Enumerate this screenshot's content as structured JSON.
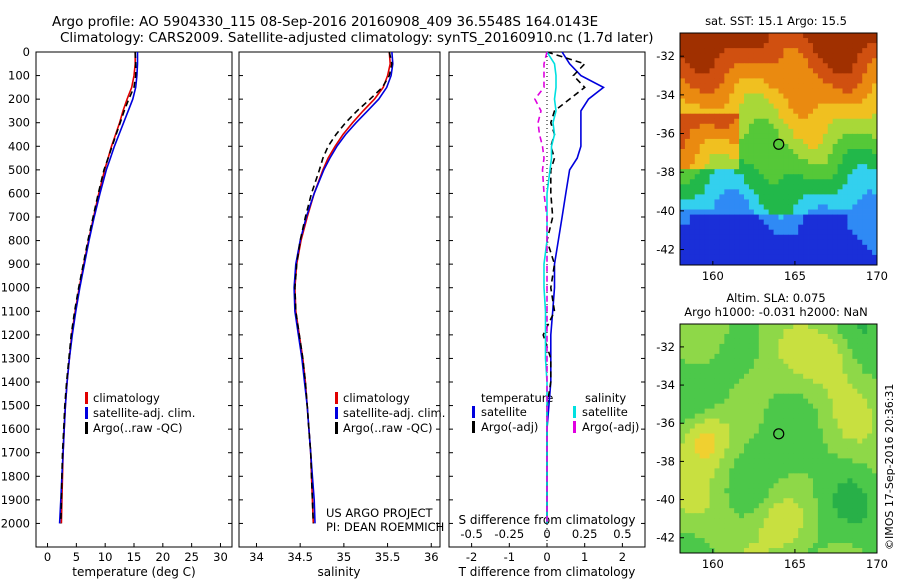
{
  "header": {
    "line1": "Argo profile: AO 5904330_115 08-Sep-2016 20160908_409 36.5548S 164.0143E",
    "line2": "Climatology: CARS2009. Satellite-adjusted climatology: synTS_20160910.nc (1.7d later)"
  },
  "colors": {
    "climatology": "#e00000",
    "satellite": "#0000dd",
    "argo": "#000000",
    "salinity_sat": "#00e0e0",
    "salinity_argo": "#e000e0"
  },
  "project": {
    "line1": "US ARGO PROJECT",
    "line2": "PI: DEAN ROEMMICH"
  },
  "credit": "©IMOS 17-Sep-2016 20:36:31",
  "chart_data": [
    {
      "type": "line",
      "id": "temperature",
      "xlabel": "temperature (deg C)",
      "ylabel": "",
      "xlim": [
        -2,
        32
      ],
      "ylim": [
        2100,
        0
      ],
      "xticks": [
        0,
        5,
        10,
        15,
        20,
        25,
        30
      ],
      "yticks": [
        0,
        100,
        200,
        300,
        400,
        500,
        600,
        700,
        800,
        900,
        1000,
        1100,
        1200,
        1300,
        1400,
        1500,
        1600,
        1700,
        1800,
        1900,
        2000
      ],
      "legend": [
        "climatology",
        "satellite-adj. clim.",
        "Argo(..raw -QC)"
      ],
      "depth": [
        0,
        50,
        100,
        150,
        200,
        250,
        300,
        350,
        400,
        450,
        500,
        600,
        700,
        800,
        900,
        1000,
        1100,
        1200,
        1300,
        1400,
        1500,
        1600,
        1700,
        1800,
        1900,
        2000
      ],
      "series": [
        {
          "name": "climatology",
          "values": [
            15.2,
            15.2,
            15.0,
            14.6,
            13.8,
            13.1,
            12.5,
            11.8,
            11.1,
            10.5,
            9.9,
            8.9,
            8.0,
            7.1,
            6.3,
            5.5,
            4.8,
            4.2,
            3.8,
            3.4,
            3.1,
            2.9,
            2.7,
            2.6,
            2.5,
            2.4
          ]
        },
        {
          "name": "satellite-adj. clim.",
          "values": [
            15.6,
            15.6,
            15.5,
            15.3,
            14.8,
            14.0,
            13.2,
            12.4,
            11.6,
            10.9,
            10.2,
            9.1,
            8.1,
            7.2,
            6.4,
            5.6,
            4.9,
            4.3,
            3.8,
            3.4,
            3.1,
            2.9,
            2.7,
            2.5,
            2.3,
            2.1
          ]
        },
        {
          "name": "Argo(..raw -QC)",
          "values": [
            15.2,
            15.3,
            15.3,
            15.0,
            14.1,
            13.3,
            12.6,
            11.9,
            11.2,
            10.5,
            9.8,
            8.8,
            7.9,
            7.0,
            6.2,
            5.4,
            4.7,
            4.1,
            3.7,
            3.3,
            3.0,
            2.8,
            2.6,
            2.5,
            2.4,
            2.3
          ]
        }
      ]
    },
    {
      "type": "line",
      "id": "salinity",
      "xlabel": "salinity",
      "ylabel": "",
      "xlim": [
        33.8,
        36.1
      ],
      "ylim": [
        2100,
        0
      ],
      "xticks": [
        34,
        34.5,
        35,
        35.5,
        36
      ],
      "legend": [
        "climatology",
        "satellite-adj. clim.",
        "Argo(..raw -QC)"
      ],
      "depth": [
        0,
        50,
        100,
        150,
        200,
        250,
        300,
        350,
        400,
        450,
        500,
        600,
        700,
        800,
        900,
        1000,
        1100,
        1200,
        1300,
        1400,
        1500,
        1600,
        1700,
        1800,
        1900,
        2000
      ],
      "series": [
        {
          "name": "climatology",
          "values": [
            35.52,
            35.53,
            35.5,
            35.45,
            35.35,
            35.22,
            35.1,
            34.99,
            34.9,
            34.82,
            34.76,
            34.66,
            34.58,
            34.51,
            34.46,
            34.44,
            34.45,
            34.49,
            34.53,
            34.56,
            34.58,
            34.6,
            34.62,
            34.63,
            34.64,
            34.65
          ]
        },
        {
          "name": "satellite-adj. clim.",
          "values": [
            35.55,
            35.56,
            35.54,
            35.49,
            35.4,
            35.27,
            35.14,
            35.02,
            34.92,
            34.84,
            34.77,
            34.66,
            34.57,
            34.5,
            34.45,
            34.43,
            34.44,
            34.48,
            34.52,
            34.55,
            34.58,
            34.6,
            34.62,
            34.64,
            34.66,
            34.67
          ]
        },
        {
          "name": "Argo(..raw -QC)",
          "values": [
            35.52,
            35.55,
            35.52,
            35.44,
            35.3,
            35.15,
            35.02,
            34.91,
            34.82,
            34.76,
            34.72,
            34.63,
            34.56,
            34.5,
            34.46,
            34.44,
            34.45,
            34.49,
            34.53,
            34.56,
            34.58,
            34.6,
            34.62,
            34.63,
            34.64,
            34.65
          ]
        }
      ]
    },
    {
      "type": "line",
      "id": "difference",
      "xlabel": "T difference from climatology",
      "xlabel_top": "S difference from climatology",
      "xlim": [
        -2.6,
        2.6
      ],
      "ylim": [
        2100,
        0
      ],
      "xticks": [
        -2,
        -1,
        0,
        1,
        2
      ],
      "xticks_top": [
        -0.5,
        -0.25,
        0,
        0.25,
        0.5
      ],
      "legend_titles": [
        "temperature",
        "salinity"
      ],
      "legend": [
        "satellite",
        "Argo(-adj)",
        "satellite",
        "Argo(-adj)"
      ],
      "depth": [
        0,
        50,
        100,
        150,
        200,
        250,
        300,
        350,
        400,
        450,
        500,
        600,
        700,
        800,
        900,
        1000,
        1100,
        1200,
        1300,
        1400,
        1500,
        1600,
        1700,
        1800,
        1900,
        2000
      ],
      "series": [
        {
          "name": "temperature satellite",
          "values": [
            0.4,
            0.6,
            0.9,
            1.5,
            1.1,
            0.9,
            0.9,
            0.9,
            0.9,
            0.8,
            0.6,
            0.5,
            0.4,
            0.3,
            0.2,
            0.2,
            0.15,
            0.1,
            0.1,
            0.1,
            0.05,
            0.0,
            0.0,
            0.0,
            0.0,
            0.0
          ]
        },
        {
          "name": "temperature Argo(-adj)",
          "values": [
            0.0,
            1.0,
            0.7,
            1.0,
            0.6,
            0.2,
            0.1,
            0.2,
            0.1,
            0.2,
            0.1,
            0.1,
            0.15,
            0.0,
            0.2,
            0.1,
            0.2,
            -0.1,
            0.1,
            0.1,
            0.0,
            0.0,
            0.0,
            0.0,
            0.0,
            0.0
          ]
        },
        {
          "name": "salinity satellite",
          "values": [
            0.0,
            0.05,
            0.06,
            0.06,
            0.05,
            0.06,
            0.04,
            0.05,
            0.03,
            0.03,
            0.02,
            0.0,
            0.0,
            0.0,
            -0.02,
            -0.02,
            -0.01,
            -0.01,
            -0.01,
            0.0,
            0.0,
            0.0,
            0.0,
            0.0,
            0.0,
            0.0
          ]
        },
        {
          "name": "salinity Argo(-adj)",
          "values": [
            0.0,
            -0.02,
            -0.02,
            -0.02,
            -0.08,
            -0.04,
            -0.06,
            -0.05,
            -0.03,
            -0.02,
            -0.03,
            -0.02,
            0.0,
            0.0,
            0.0,
            0.0,
            0.0,
            0.0,
            0.0,
            0.0,
            0.0,
            0.0,
            0.0,
            0.0,
            0.0,
            0.0
          ]
        }
      ]
    },
    {
      "type": "heatmap",
      "id": "sst-map",
      "title": "sat. SST: 15.1 Argo: 15.5",
      "xlim": [
        158,
        170
      ],
      "ylim": [
        -42.8,
        -30.8
      ],
      "xticks": [
        160,
        165,
        170
      ],
      "yticks": [
        -32,
        -34,
        -36,
        -38,
        -40,
        -42
      ],
      "marker": {
        "lon": 164.0143,
        "lat": -36.5548
      },
      "palette": [
        "#1a2fd8",
        "#2f8af5",
        "#33d0ee",
        "#22b84a",
        "#55c838",
        "#a8d838",
        "#f0c020",
        "#ea8a10",
        "#d05010",
        "#a03000"
      ]
    },
    {
      "type": "heatmap",
      "id": "sla-map",
      "title_line1": "Altim. SLA: 0.075",
      "title_line2": "Argo h1000: -0.031 h2000: NaN",
      "xlim": [
        158,
        170
      ],
      "ylim": [
        -42.8,
        -30.8
      ],
      "xticks": [
        160,
        165,
        170
      ],
      "yticks": [
        -32,
        -34,
        -36,
        -38,
        -40,
        -42
      ],
      "marker": {
        "lon": 164.0143,
        "lat": -36.5548
      },
      "palette": [
        "#28b048",
        "#4cc84a",
        "#8ed848",
        "#c8e040",
        "#f0d030",
        "#f0a020"
      ]
    }
  ]
}
